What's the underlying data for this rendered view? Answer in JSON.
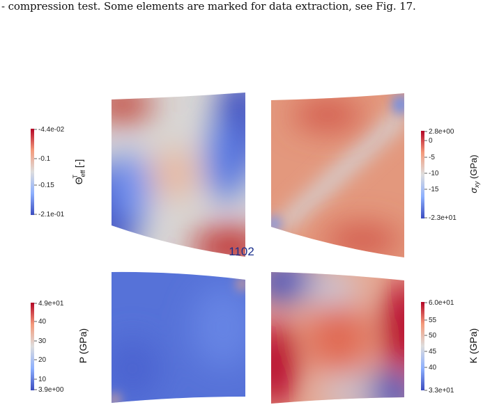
{
  "caption": "- compression test. Some elements are marked for data extraction, see Fig. 17.",
  "center_label": "1102",
  "colors": {
    "blue": "#3b4cc0",
    "white": "#dddddd",
    "red": "#b40426",
    "title_blue": "#1a2f8c"
  },
  "panels": {
    "theta": {
      "label_main": "Θ",
      "label_sup": "T",
      "label_sub": "eff",
      "label_unit": " [-]",
      "ticks": [
        "-4.4e-02",
        "-0.1",
        "-0.15",
        "-2.1e-01"
      ]
    },
    "sigma": {
      "label_main": "σ",
      "label_sub": "xy",
      "label_unit": " (GPa)",
      "ticks": [
        "2.8e+00",
        "0",
        "-5",
        "-10",
        "-15",
        "-2.3e+01"
      ]
    },
    "pressure": {
      "label": "P (GPa)",
      "ticks": [
        "4.9e+01",
        "40",
        "30",
        "20",
        "10",
        "3.9e+00"
      ]
    },
    "bulk": {
      "label": "K (GPa)",
      "ticks": [
        "6.0e+01",
        "55",
        "50",
        "45",
        "40",
        "3.3e+01"
      ]
    }
  }
}
